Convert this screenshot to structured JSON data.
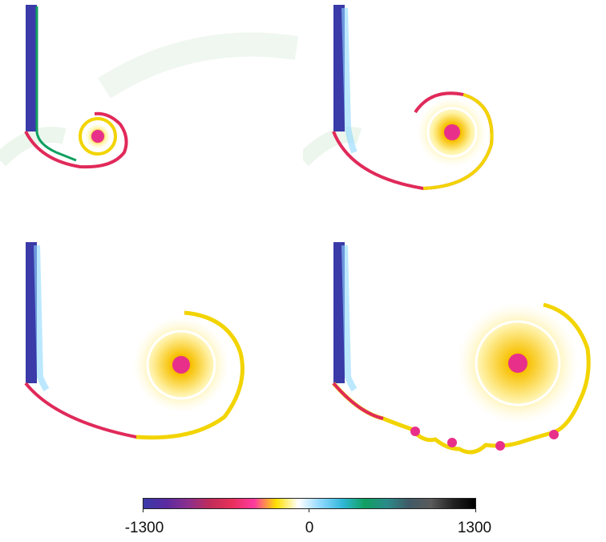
{
  "colorbar": {
    "min_label": "-1300",
    "mid_label": "0",
    "max_label": "1300",
    "stops": [
      "#3a3aa8",
      "#5a2aa0",
      "#8a2f8e",
      "#c02c5a",
      "#e8305a",
      "#ff3aa0",
      "#ffe000",
      "#ffffff",
      "#8fd8ff",
      "#30b8d8",
      "#10a060",
      "#2a8a8a",
      "#405a66",
      "#5a5a5a",
      "#222222",
      "#000000"
    ]
  },
  "panels": [
    {
      "name": "snapshot-1"
    },
    {
      "name": "snapshot-2"
    },
    {
      "name": "snapshot-3"
    },
    {
      "name": "snapshot-4"
    }
  ],
  "colors": {
    "plate": "#3a3aa8",
    "vortex_core": "#e8308a",
    "vortex_sheet": "#f2d400",
    "shear_layer": "#e02a5a",
    "background": "#ffffff"
  }
}
